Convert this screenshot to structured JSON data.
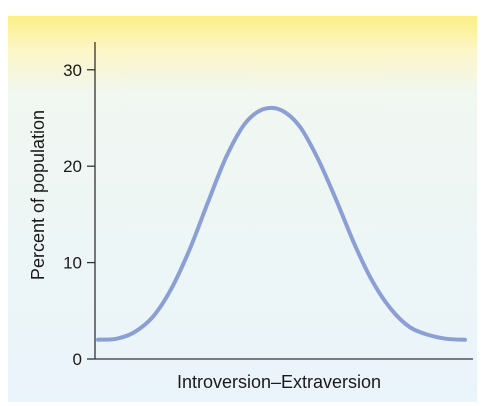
{
  "chart_data": {
    "type": "line",
    "title": "",
    "xlabel": "Introversion–Extraversion",
    "ylabel": "Percent of population",
    "ylim": [
      0,
      32
    ],
    "xlim": [
      0,
      100
    ],
    "yticks": [
      "0",
      "10",
      "20",
      "30"
    ],
    "ytick_values": [
      0,
      10,
      20,
      30
    ],
    "grid": false,
    "series": [
      {
        "x": [
          0,
          5,
          10,
          15,
          20,
          25,
          30,
          35,
          40,
          45,
          50,
          55,
          60,
          65,
          70,
          75,
          80,
          85,
          90,
          95,
          100
        ],
        "y": [
          2.0,
          2.1,
          2.8,
          4.4,
          7.3,
          11.4,
          16.3,
          21.0,
          24.4,
          25.9,
          25.8,
          24.1,
          20.7,
          16.4,
          11.8,
          7.9,
          5.1,
          3.3,
          2.5,
          2.1,
          2.0
        ]
      }
    ]
  },
  "colors": {
    "curve": "#8c9fd4",
    "panel_top": "#fbef84",
    "panel_bottom": "#eaf5fb",
    "axis": "#333333"
  }
}
